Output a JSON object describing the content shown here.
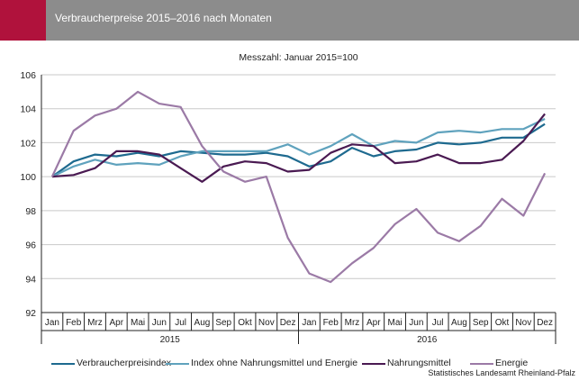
{
  "header": {
    "title": "Verbraucherpreise 2015–2016 nach Monaten",
    "accent_color": "#b0123c",
    "background_color": "#8c8c8c"
  },
  "chart_data": {
    "type": "line",
    "subtitle": "Messzahl: Januar 2015=100",
    "categories": [
      "Jan",
      "Feb",
      "Mrz",
      "Apr",
      "Mai",
      "Jun",
      "Jul",
      "Aug",
      "Sep",
      "Okt",
      "Nov",
      "Dez",
      "Jan",
      "Feb",
      "Mrz",
      "Apr",
      "Mai",
      "Jun",
      "Jul",
      "Aug",
      "Sep",
      "Okt",
      "Nov",
      "Dez"
    ],
    "year_labels": [
      "2015",
      "2016"
    ],
    "ylim": [
      92,
      106
    ],
    "yticks": [
      92,
      94,
      96,
      98,
      100,
      102,
      104,
      106
    ],
    "grid": true,
    "legend_position": "bottom",
    "series": [
      {
        "name": "Verbraucherpreisindex",
        "color": "#1e6a8f",
        "values": [
          100.0,
          100.9,
          101.3,
          101.2,
          101.4,
          101.2,
          101.5,
          101.4,
          101.3,
          101.3,
          101.4,
          101.2,
          100.6,
          100.9,
          101.7,
          101.2,
          101.5,
          101.6,
          102.0,
          101.9,
          102.0,
          102.3,
          102.3,
          103.1
        ]
      },
      {
        "name": "Index ohne Nahrungsmittel und Energie",
        "color": "#5fa2bd",
        "values": [
          100.0,
          100.6,
          101.0,
          100.7,
          100.8,
          100.7,
          101.2,
          101.5,
          101.5,
          101.5,
          101.5,
          101.9,
          101.3,
          101.8,
          102.5,
          101.8,
          102.1,
          102.0,
          102.6,
          102.7,
          102.6,
          102.8,
          102.8,
          103.4
        ]
      },
      {
        "name": "Nahrungsmittel",
        "color": "#4a1a52",
        "values": [
          100.0,
          100.1,
          100.5,
          101.5,
          101.5,
          101.3,
          100.5,
          99.7,
          100.6,
          100.9,
          100.8,
          100.3,
          100.4,
          101.4,
          101.9,
          101.8,
          100.8,
          100.9,
          101.3,
          100.8,
          100.8,
          101.0,
          102.1,
          103.7
        ]
      },
      {
        "name": "Energie",
        "color": "#9b7aa6",
        "values": [
          100.0,
          102.7,
          103.6,
          104.0,
          105.0,
          104.3,
          104.1,
          101.8,
          100.3,
          99.7,
          100.0,
          96.4,
          94.3,
          93.8,
          94.9,
          95.8,
          97.2,
          98.1,
          96.7,
          96.2,
          97.1,
          98.7,
          97.7,
          100.2
        ]
      }
    ]
  },
  "source": "Statistisches Landesamt Rheinland-Pfalz"
}
